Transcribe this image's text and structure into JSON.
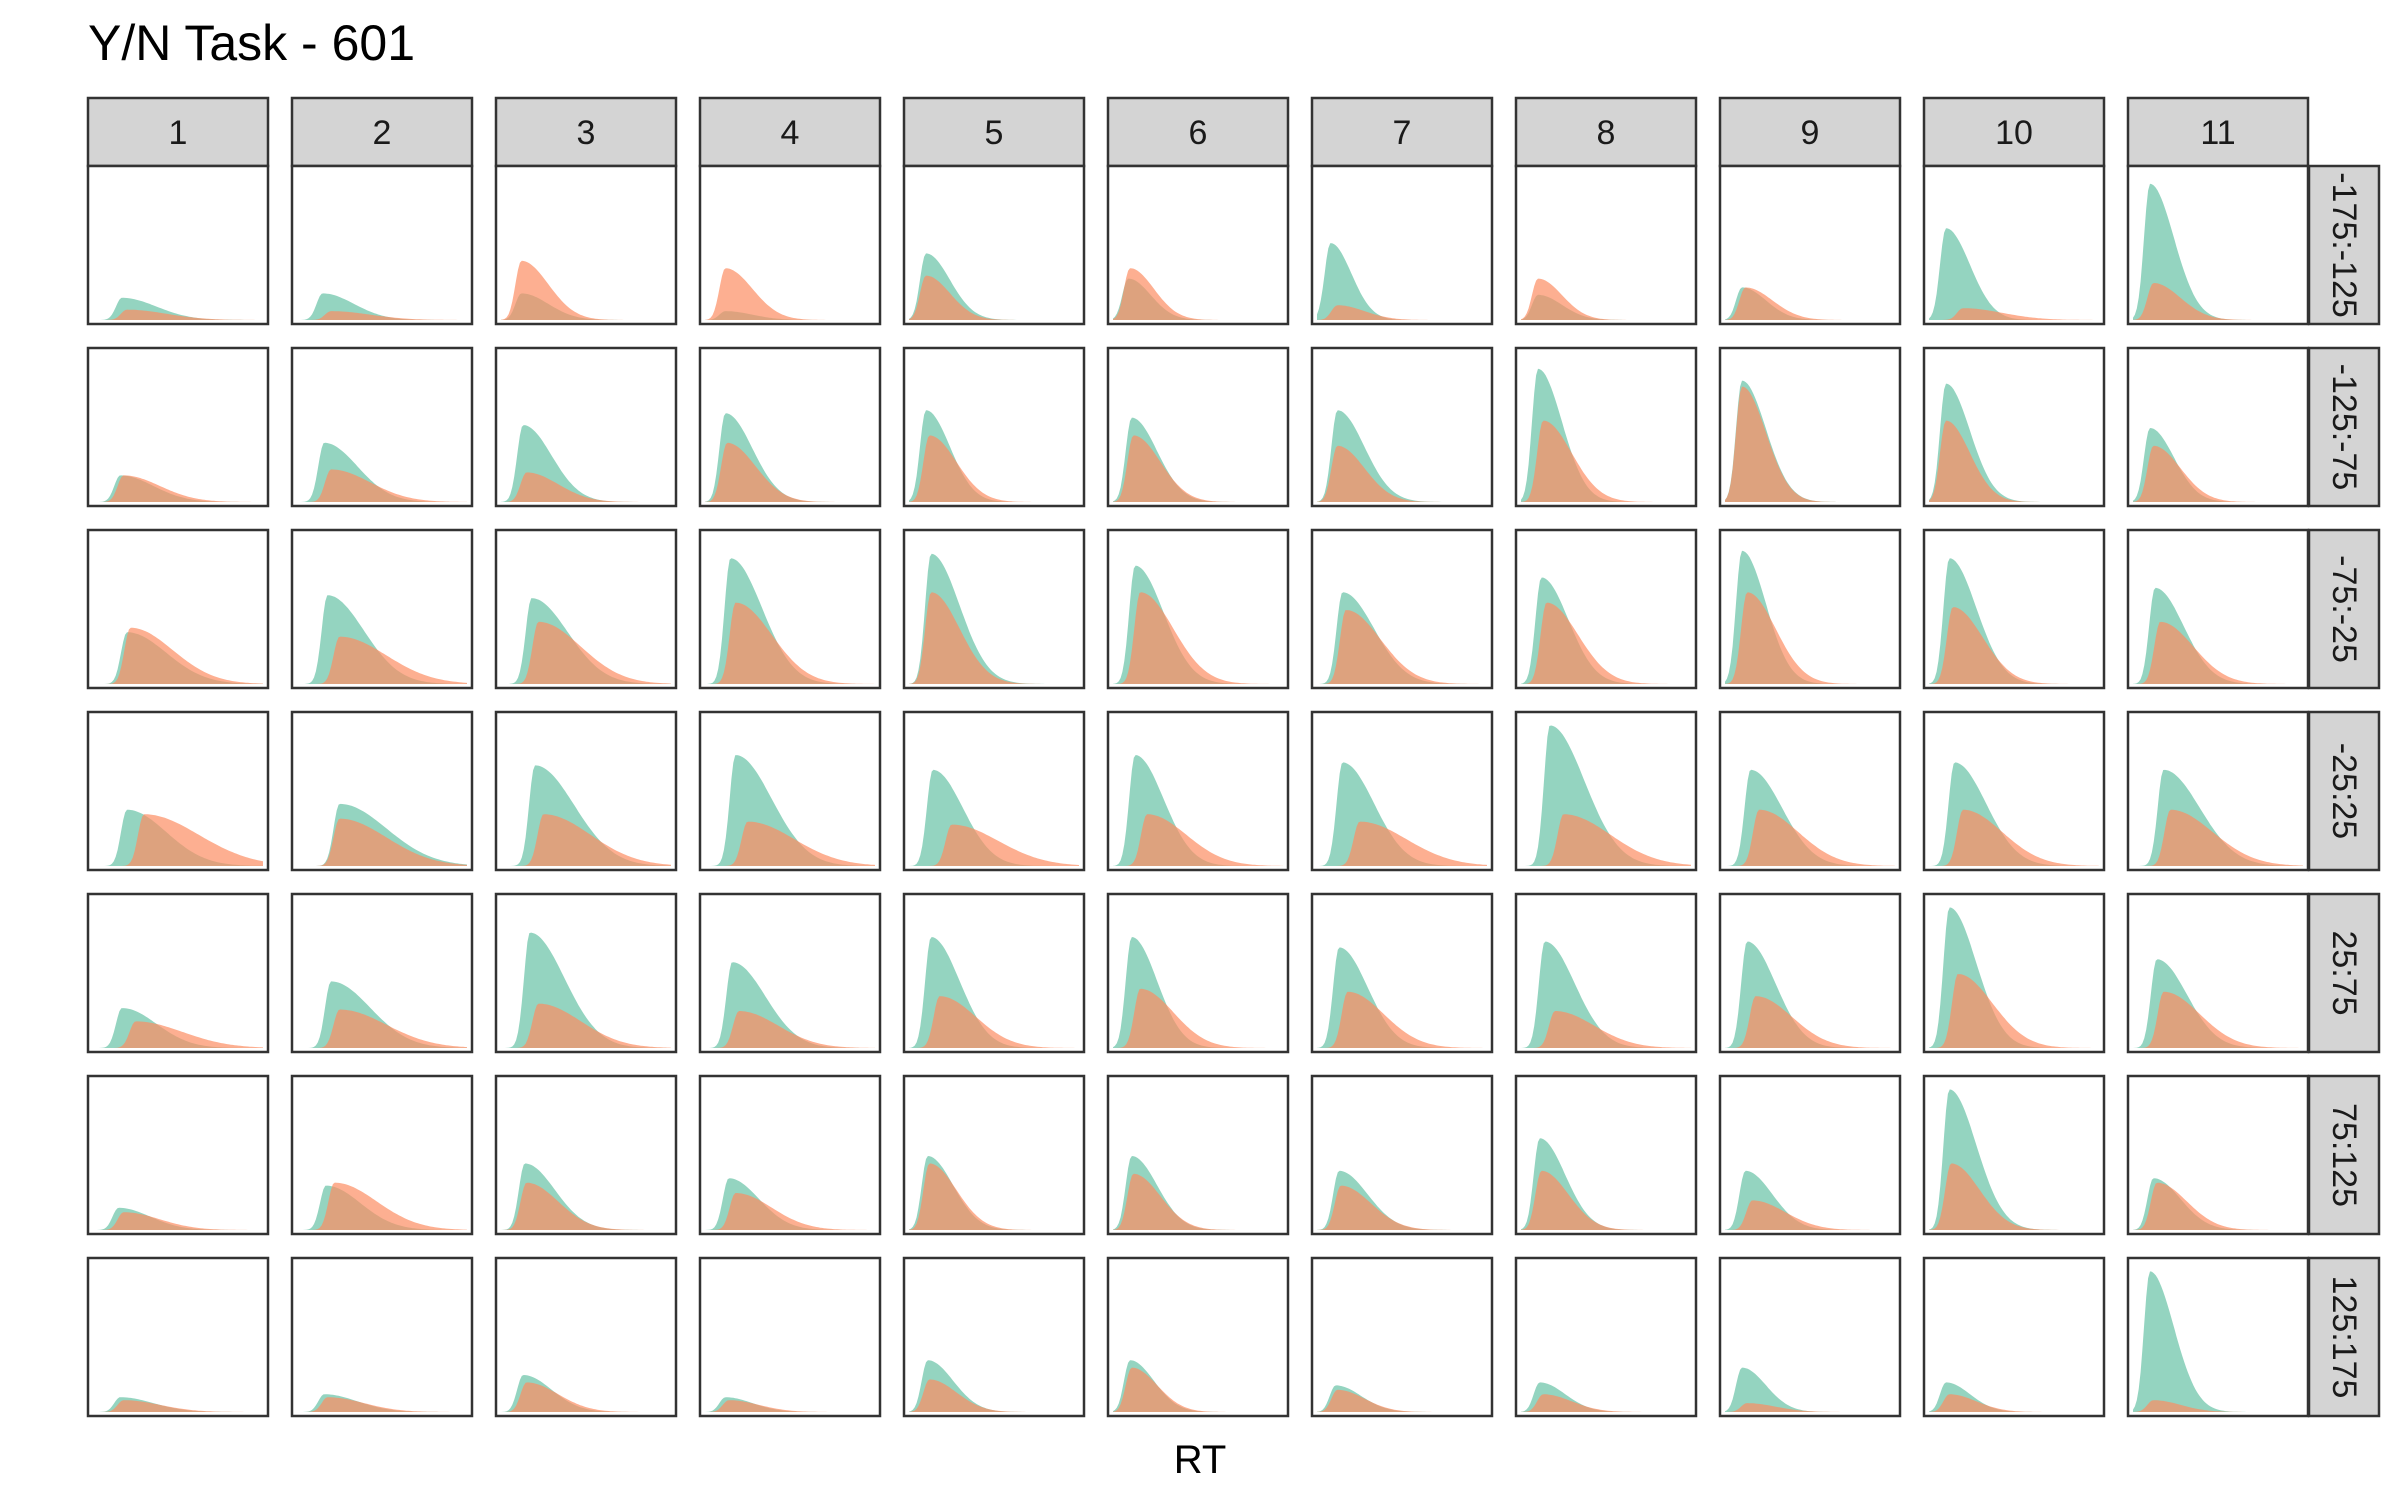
{
  "chart_data": {
    "type": "area",
    "subtype": "faceted density plot",
    "title": "Y/N Task - 601",
    "xlabel": "RT",
    "ylabel": "",
    "grid": false,
    "legend": "none",
    "axis_ticks_shown": false,
    "facet_columns": [
      "1",
      "2",
      "3",
      "4",
      "5",
      "6",
      "7",
      "8",
      "9",
      "10",
      "11"
    ],
    "facet_rows": [
      "-175:-125",
      "-125:-75",
      "-75:-25",
      "-25:25",
      "25:75",
      "75:125",
      "125:175"
    ],
    "series_colors": [
      "#66c2a5",
      "#fc8d62"
    ],
    "fill_opacity": 0.7,
    "density_peaks": {
      "note": "Approximate peak position (fraction of x-range) and height (fraction of panel height) of each series' density, per row (outer) and column (inner).",
      "series_1": [
        [
          [
            0.17,
            0.15
          ],
          [
            0.15,
            0.18
          ],
          [
            0.12,
            0.18
          ],
          [
            0.12,
            0.06
          ],
          [
            0.1,
            0.45
          ],
          [
            0.09,
            0.28
          ],
          [
            0.08,
            0.52
          ],
          [
            0.1,
            0.17
          ],
          [
            0.1,
            0.22
          ],
          [
            0.1,
            0.62
          ],
          [
            0.1,
            0.92
          ]
        ],
        [
          [
            0.16,
            0.18
          ],
          [
            0.16,
            0.4
          ],
          [
            0.13,
            0.52
          ],
          [
            0.12,
            0.6
          ],
          [
            0.1,
            0.62
          ],
          [
            0.11,
            0.57
          ],
          [
            0.12,
            0.62
          ],
          [
            0.1,
            0.9
          ],
          [
            0.1,
            0.82
          ],
          [
            0.1,
            0.8
          ],
          [
            0.1,
            0.5
          ]
        ],
        [
          [
            0.2,
            0.35
          ],
          [
            0.18,
            0.6
          ],
          [
            0.18,
            0.58
          ],
          [
            0.15,
            0.85
          ],
          [
            0.13,
            0.88
          ],
          [
            0.13,
            0.8
          ],
          [
            0.15,
            0.62
          ],
          [
            0.12,
            0.72
          ],
          [
            0.1,
            0.9
          ],
          [
            0.12,
            0.85
          ],
          [
            0.13,
            0.65
          ]
        ],
        [
          [
            0.2,
            0.38
          ],
          [
            0.25,
            0.42
          ],
          [
            0.2,
            0.68
          ],
          [
            0.18,
            0.75
          ],
          [
            0.14,
            0.65
          ],
          [
            0.13,
            0.75
          ],
          [
            0.15,
            0.7
          ],
          [
            0.17,
            0.95
          ],
          [
            0.15,
            0.65
          ],
          [
            0.15,
            0.7
          ],
          [
            0.18,
            0.65
          ]
        ],
        [
          [
            0.17,
            0.27
          ],
          [
            0.2,
            0.45
          ],
          [
            0.17,
            0.78
          ],
          [
            0.16,
            0.58
          ],
          [
            0.13,
            0.75
          ],
          [
            0.11,
            0.75
          ],
          [
            0.13,
            0.68
          ],
          [
            0.14,
            0.72
          ],
          [
            0.13,
            0.72
          ],
          [
            0.12,
            0.95
          ],
          [
            0.14,
            0.6
          ]
        ],
        [
          [
            0.15,
            0.15
          ],
          [
            0.17,
            0.3
          ],
          [
            0.14,
            0.45
          ],
          [
            0.14,
            0.35
          ],
          [
            0.11,
            0.5
          ],
          [
            0.11,
            0.5
          ],
          [
            0.13,
            0.4
          ],
          [
            0.11,
            0.62
          ],
          [
            0.12,
            0.4
          ],
          [
            0.12,
            0.95
          ],
          [
            0.12,
            0.35
          ]
        ],
        [
          [
            0.16,
            0.1
          ],
          [
            0.16,
            0.12
          ],
          [
            0.13,
            0.25
          ],
          [
            0.12,
            0.1
          ],
          [
            0.11,
            0.35
          ],
          [
            0.1,
            0.35
          ],
          [
            0.11,
            0.18
          ],
          [
            0.11,
            0.2
          ],
          [
            0.1,
            0.3
          ],
          [
            0.1,
            0.2
          ],
          [
            0.1,
            0.95
          ]
        ]
      ],
      "series_2": [
        [
          [
            0.2,
            0.07
          ],
          [
            0.2,
            0.06
          ],
          [
            0.12,
            0.4
          ],
          [
            0.12,
            0.35
          ],
          [
            0.1,
            0.3
          ],
          [
            0.1,
            0.35
          ],
          [
            0.12,
            0.1
          ],
          [
            0.1,
            0.28
          ],
          [
            0.12,
            0.22
          ],
          [
            0.2,
            0.08
          ],
          [
            0.12,
            0.25
          ]
        ],
        [
          [
            0.18,
            0.18
          ],
          [
            0.2,
            0.22
          ],
          [
            0.15,
            0.2
          ],
          [
            0.13,
            0.4
          ],
          [
            0.12,
            0.45
          ],
          [
            0.12,
            0.45
          ],
          [
            0.12,
            0.38
          ],
          [
            0.13,
            0.55
          ],
          [
            0.1,
            0.78
          ],
          [
            0.1,
            0.55
          ],
          [
            0.12,
            0.38
          ]
        ],
        [
          [
            0.22,
            0.38
          ],
          [
            0.25,
            0.32
          ],
          [
            0.22,
            0.42
          ],
          [
            0.18,
            0.55
          ],
          [
            0.13,
            0.62
          ],
          [
            0.16,
            0.62
          ],
          [
            0.17,
            0.5
          ],
          [
            0.15,
            0.55
          ],
          [
            0.13,
            0.62
          ],
          [
            0.14,
            0.52
          ],
          [
            0.16,
            0.42
          ]
        ],
        [
          [
            0.3,
            0.35
          ],
          [
            0.25,
            0.32
          ],
          [
            0.25,
            0.35
          ],
          [
            0.25,
            0.3
          ],
          [
            0.25,
            0.28
          ],
          [
            0.2,
            0.35
          ],
          [
            0.25,
            0.3
          ],
          [
            0.25,
            0.35
          ],
          [
            0.2,
            0.38
          ],
          [
            0.2,
            0.38
          ],
          [
            0.22,
            0.38
          ]
        ],
        [
          [
            0.25,
            0.18
          ],
          [
            0.25,
            0.26
          ],
          [
            0.22,
            0.3
          ],
          [
            0.2,
            0.25
          ],
          [
            0.18,
            0.35
          ],
          [
            0.16,
            0.4
          ],
          [
            0.18,
            0.38
          ],
          [
            0.2,
            0.25
          ],
          [
            0.18,
            0.35
          ],
          [
            0.17,
            0.5
          ],
          [
            0.18,
            0.38
          ]
        ],
        [
          [
            0.18,
            0.12
          ],
          [
            0.22,
            0.32
          ],
          [
            0.15,
            0.32
          ],
          [
            0.18,
            0.25
          ],
          [
            0.12,
            0.45
          ],
          [
            0.12,
            0.38
          ],
          [
            0.14,
            0.3
          ],
          [
            0.12,
            0.4
          ],
          [
            0.16,
            0.2
          ],
          [
            0.13,
            0.45
          ],
          [
            0.14,
            0.32
          ]
        ],
        [
          [
            0.18,
            0.08
          ],
          [
            0.18,
            0.1
          ],
          [
            0.15,
            0.2
          ],
          [
            0.14,
            0.08
          ],
          [
            0.12,
            0.22
          ],
          [
            0.11,
            0.3
          ],
          [
            0.12,
            0.15
          ],
          [
            0.13,
            0.12
          ],
          [
            0.13,
            0.06
          ],
          [
            0.12,
            0.12
          ],
          [
            0.12,
            0.08
          ]
        ]
      ]
    }
  }
}
